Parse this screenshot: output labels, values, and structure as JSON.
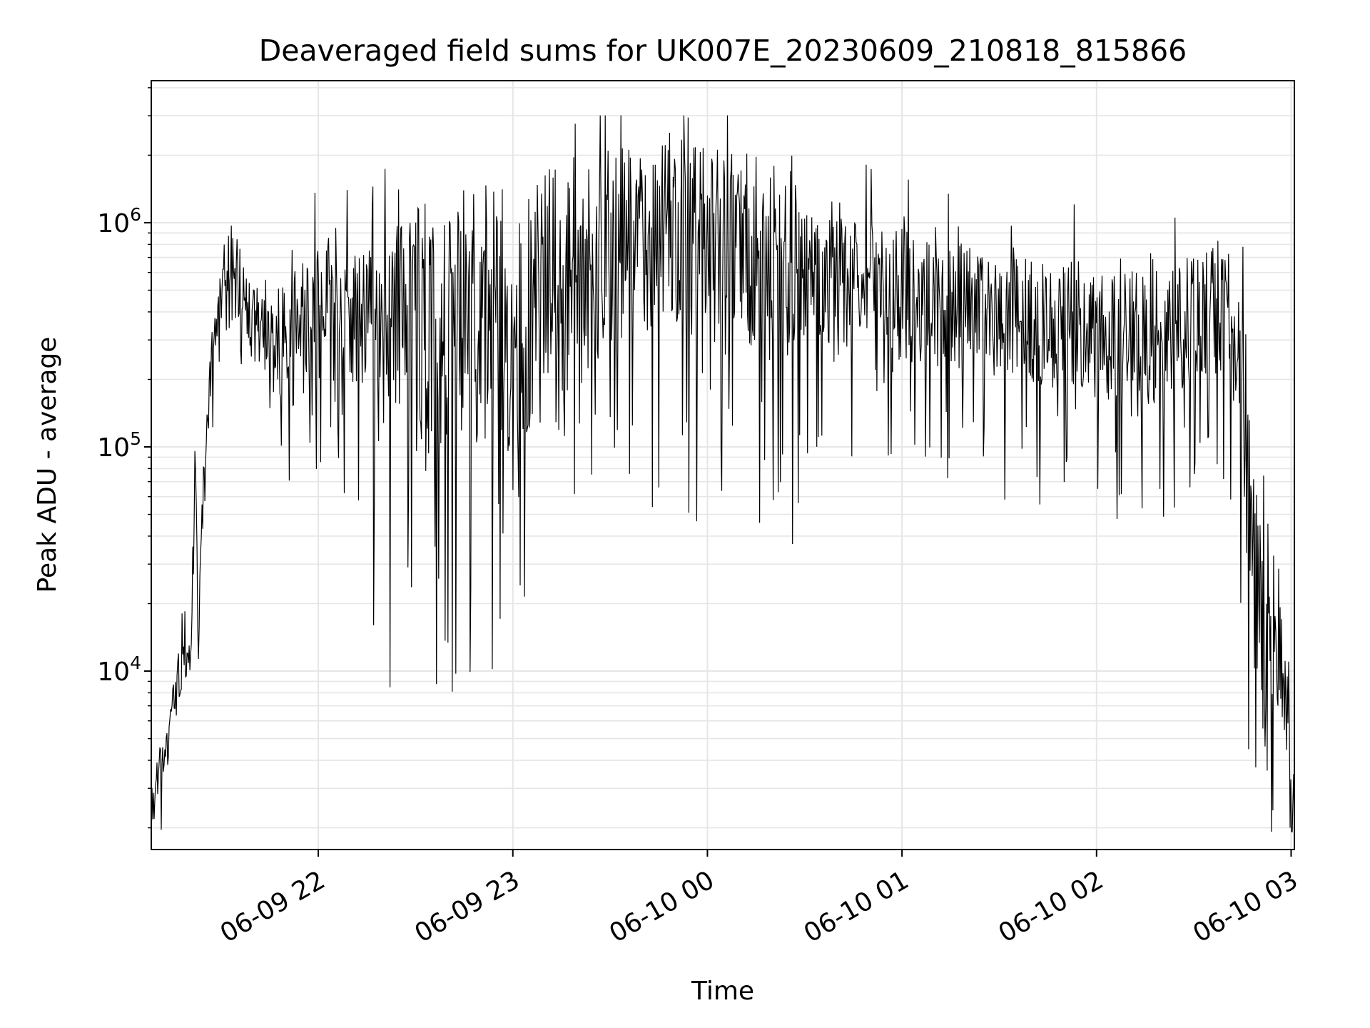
{
  "chart_data": {
    "type": "line",
    "title": "Deaveraged field sums for UK007E_20230609_210818_815866",
    "xlabel": "Time",
    "ylabel": "Peak ADU - average",
    "yscale": "log",
    "xlim": [
      "2023-06-09 21:08:30",
      "2023-06-10 03:01:00"
    ],
    "ylim": [
      1600,
      4300000
    ],
    "xticks": [
      {
        "t": "2023-06-09 22:00",
        "label": "06-09 22"
      },
      {
        "t": "2023-06-09 23:00",
        "label": "06-09 23"
      },
      {
        "t": "2023-06-10 00:00",
        "label": "06-10 00"
      },
      {
        "t": "2023-06-10 01:00",
        "label": "06-10 01"
      },
      {
        "t": "2023-06-10 02:00",
        "label": "06-10 02"
      },
      {
        "t": "2023-06-10 03:00",
        "label": "06-10 03"
      }
    ],
    "yticks": [
      {
        "value": 10000,
        "base": "10",
        "exp": "4"
      },
      {
        "value": 100000,
        "base": "10",
        "exp": "5"
      },
      {
        "value": 1000000,
        "base": "10",
        "exp": "6"
      }
    ],
    "grid": true,
    "line_color": "#000000",
    "grid_color": "#e6e6e6",
    "series": [
      {
        "values": [
          [
            "2023-06-09 21:08:30",
            2500
          ],
          [
            "2023-06-09 21:11:00",
            3500
          ],
          [
            "2023-06-09 21:14:00",
            5000
          ],
          [
            "2023-06-09 21:16:00",
            8000
          ],
          [
            "2023-06-09 21:18:00",
            11000
          ],
          [
            "2023-06-09 21:21:00",
            12500
          ],
          [
            "2023-06-09 21:22:00",
            90000
          ],
          [
            "2023-06-09 21:23:00",
            14000
          ],
          [
            "2023-06-09 21:24:00",
            45000
          ],
          [
            "2023-06-09 21:26:00",
            150000
          ],
          [
            "2023-06-09 21:28:00",
            300000
          ],
          [
            "2023-06-09 21:31:00",
            550000
          ],
          [
            "2023-06-09 21:33:00",
            650000
          ],
          [
            "2023-06-09 21:36:00",
            550000
          ],
          [
            "2023-06-09 21:40:00",
            380000
          ],
          [
            "2023-06-09 21:45:00",
            280000
          ],
          [
            "2023-06-09 21:50:00",
            260000
          ],
          [
            "2023-06-09 21:55:00",
            350000
          ],
          [
            "2023-06-09 22:00:00",
            400000
          ],
          [
            "2023-06-09 22:15:00",
            380000
          ],
          [
            "2023-06-09 22:30:00",
            350000
          ],
          [
            "2023-06-09 22:45:00",
            360000
          ],
          [
            "2023-06-09 23:00:00",
            380000
          ],
          [
            "2023-06-09 23:15:00",
            480000
          ],
          [
            "2023-06-09 23:30:00",
            750000
          ],
          [
            "2023-06-09 23:45:00",
            950000
          ],
          [
            "2023-06-10 00:00:00",
            800000
          ],
          [
            "2023-06-10 00:15:00",
            700000
          ],
          [
            "2023-06-10 00:30:00",
            600000
          ],
          [
            "2023-06-10 00:45:00",
            520000
          ],
          [
            "2023-06-10 01:00:00",
            480000
          ],
          [
            "2023-06-10 01:15:00",
            430000
          ],
          [
            "2023-06-10 01:30:00",
            400000
          ],
          [
            "2023-06-10 01:45:00",
            370000
          ],
          [
            "2023-06-10 02:00:00",
            330000
          ],
          [
            "2023-06-10 02:15:00",
            300000
          ],
          [
            "2023-06-10 02:30:00",
            360000
          ],
          [
            "2023-06-10 02:40:00",
            450000
          ],
          [
            "2023-06-10 02:44:00",
            200000
          ],
          [
            "2023-06-10 02:47:00",
            50000
          ],
          [
            "2023-06-10 02:50:00",
            18000
          ],
          [
            "2023-06-10 02:53:00",
            9000
          ],
          [
            "2023-06-10 02:56:00",
            12000
          ],
          [
            "2023-06-10 02:59:00",
            7000
          ],
          [
            "2023-06-10 03:01:00",
            2300
          ]
        ]
      }
    ]
  }
}
